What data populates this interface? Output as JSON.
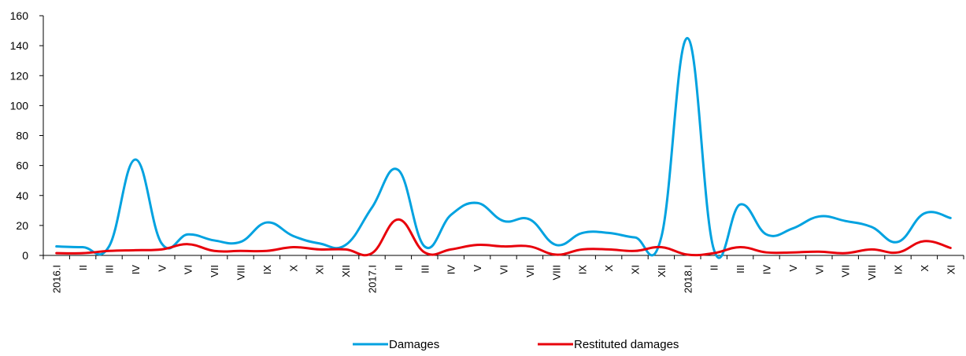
{
  "chart_data": {
    "type": "line",
    "title": "",
    "xlabel": "",
    "ylabel": "",
    "ylim": [
      0,
      160
    ],
    "yticks": [
      0,
      20,
      40,
      60,
      80,
      100,
      120,
      140,
      160
    ],
    "grid": false,
    "legend_position": "bottom",
    "categories": [
      "2016.I",
      "II",
      "III",
      "IV",
      "V",
      "VI",
      "VII",
      "VIII",
      "IX",
      "X",
      "XI",
      "XII",
      "2017.I",
      "II",
      "III",
      "IV",
      "V",
      "VI",
      "VII",
      "VIII",
      "IX",
      "X",
      "XI",
      "XII",
      "2018.I",
      "II",
      "III",
      "IV",
      "V",
      "VI",
      "VII",
      "VIII",
      "IX",
      "X",
      "XI"
    ],
    "series": [
      {
        "name": "Damages",
        "color": "#00A2E0",
        "values": [
          6,
          5.5,
          6,
          64,
          8,
          14,
          10,
          9,
          22,
          13,
          8,
          7,
          32,
          57,
          6,
          27,
          35,
          23,
          24,
          7,
          15,
          15,
          12,
          12,
          145,
          4,
          34,
          14,
          18,
          26,
          23,
          19,
          9,
          28,
          25
        ]
      },
      {
        "name": "Restituted damages",
        "color": "#E8000B",
        "values": [
          1.5,
          1.5,
          3,
          3.5,
          4,
          7.5,
          3,
          3,
          3,
          5.5,
          4,
          4,
          1.5,
          24,
          2,
          4,
          7,
          6,
          6,
          0.5,
          4,
          4,
          3,
          5.5,
          0.5,
          1.5,
          5.5,
          2,
          2,
          2.5,
          1.5,
          4,
          2,
          9.5,
          5
        ]
      }
    ]
  }
}
